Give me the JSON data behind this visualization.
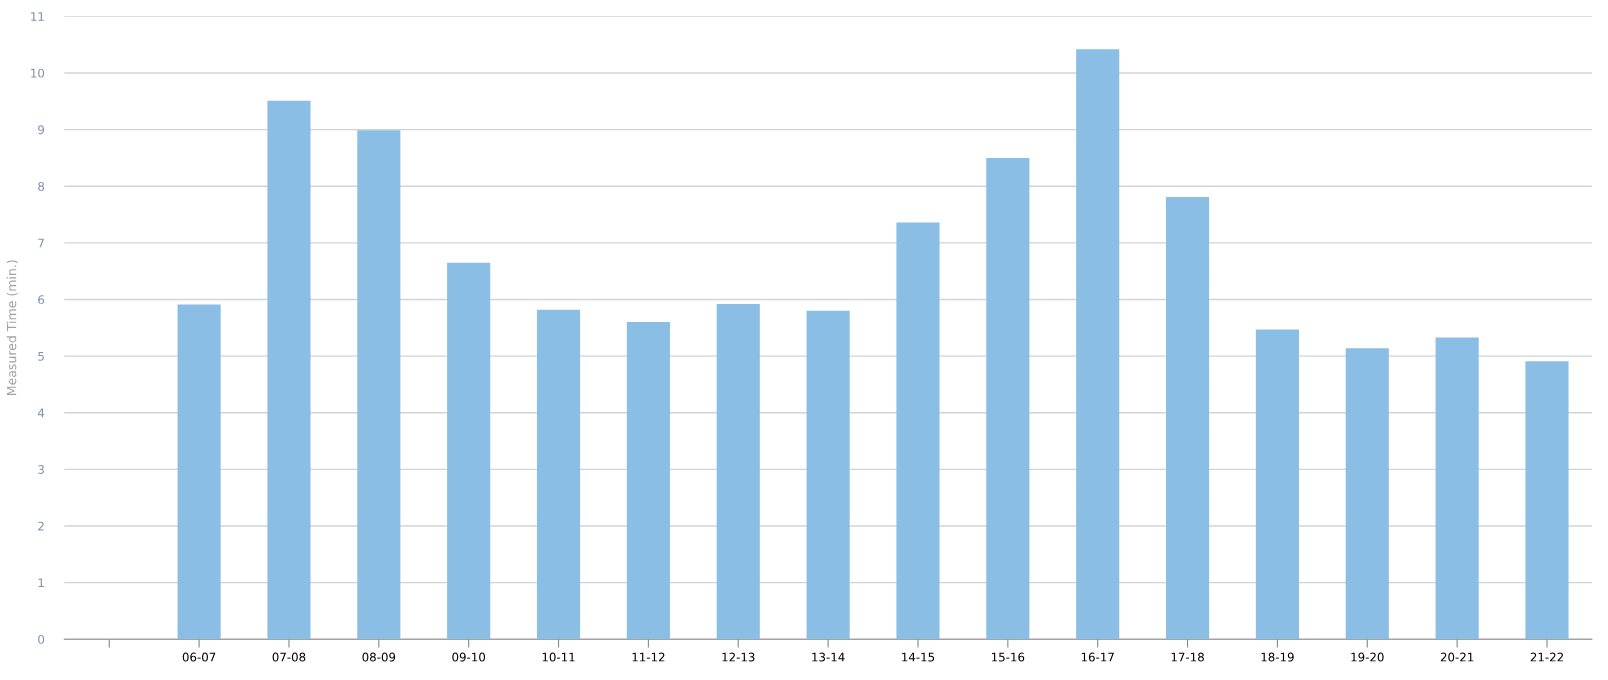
{
  "chart_data": {
    "type": "bar",
    "ylabel": "Measured Time (min.)",
    "categories": [
      null,
      "06-07",
      "07-08",
      "08-09",
      "09-10",
      "10-11",
      "11-12",
      "12-13",
      "13-14",
      "14-15",
      "15-16",
      "16-17",
      "17-18",
      "18-19",
      "19-20",
      "20-21",
      "21-22"
    ],
    "values": [
      null,
      5.91,
      9.51,
      8.99,
      6.65,
      5.82,
      5.6,
      5.92,
      5.8,
      7.36,
      8.5,
      10.42,
      7.81,
      5.47,
      5.14,
      5.33,
      4.91
    ],
    "color": "#8bbee4",
    "ylim": [
      0,
      11
    ],
    "yticks": [
      0,
      1,
      2,
      3,
      4,
      5,
      6,
      7,
      8,
      9,
      10,
      11
    ],
    "grid": "y",
    "legend": false
  }
}
